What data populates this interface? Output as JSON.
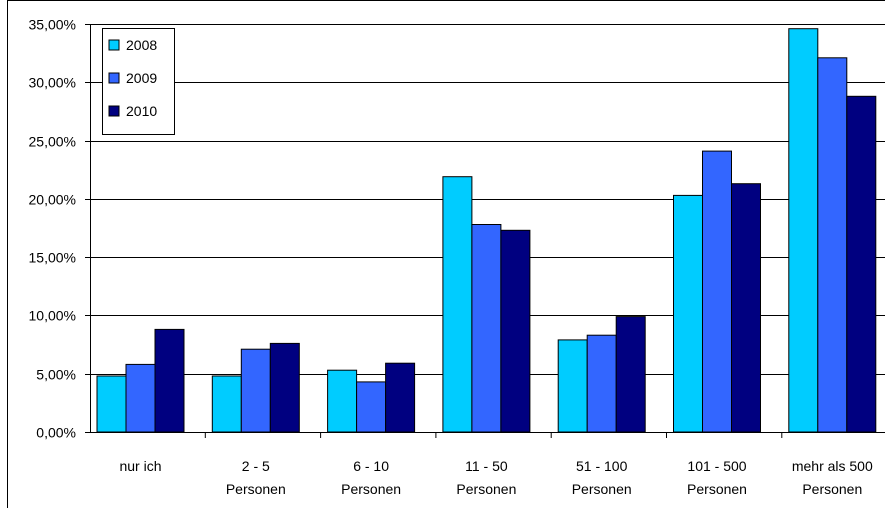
{
  "chart_data": {
    "type": "bar",
    "title": "",
    "xlabel": "",
    "ylabel": "",
    "ylim": [
      0,
      35
    ],
    "yticks": [
      0,
      5,
      10,
      15,
      20,
      25,
      30,
      35
    ],
    "ytick_labels": [
      "0,00%",
      "5,00%",
      "10,00%",
      "15,00%",
      "20,00%",
      "25,00%",
      "30,00%",
      "35,00%"
    ],
    "categories": [
      [
        "nur ich",
        ""
      ],
      [
        "2 - 5",
        "Personen"
      ],
      [
        "6 - 10",
        "Personen"
      ],
      [
        "11 - 50",
        "Personen"
      ],
      [
        "51 - 100",
        "Personen"
      ],
      [
        "101 - 500",
        "Personen"
      ],
      [
        "mehr als 500",
        "Personen"
      ]
    ],
    "series": [
      {
        "name": "2008",
        "color": "#00CCFF",
        "values": [
          4.8,
          4.8,
          5.3,
          21.9,
          7.9,
          20.3,
          34.6
        ]
      },
      {
        "name": "2009",
        "color": "#3366FF",
        "values": [
          5.8,
          7.1,
          4.3,
          17.8,
          8.3,
          24.1,
          32.1
        ]
      },
      {
        "name": "2010",
        "color": "#000080",
        "values": [
          8.8,
          7.6,
          5.9,
          17.3,
          9.9,
          21.3,
          28.8
        ]
      }
    ],
    "grid": true,
    "legend_position": "top-left"
  }
}
